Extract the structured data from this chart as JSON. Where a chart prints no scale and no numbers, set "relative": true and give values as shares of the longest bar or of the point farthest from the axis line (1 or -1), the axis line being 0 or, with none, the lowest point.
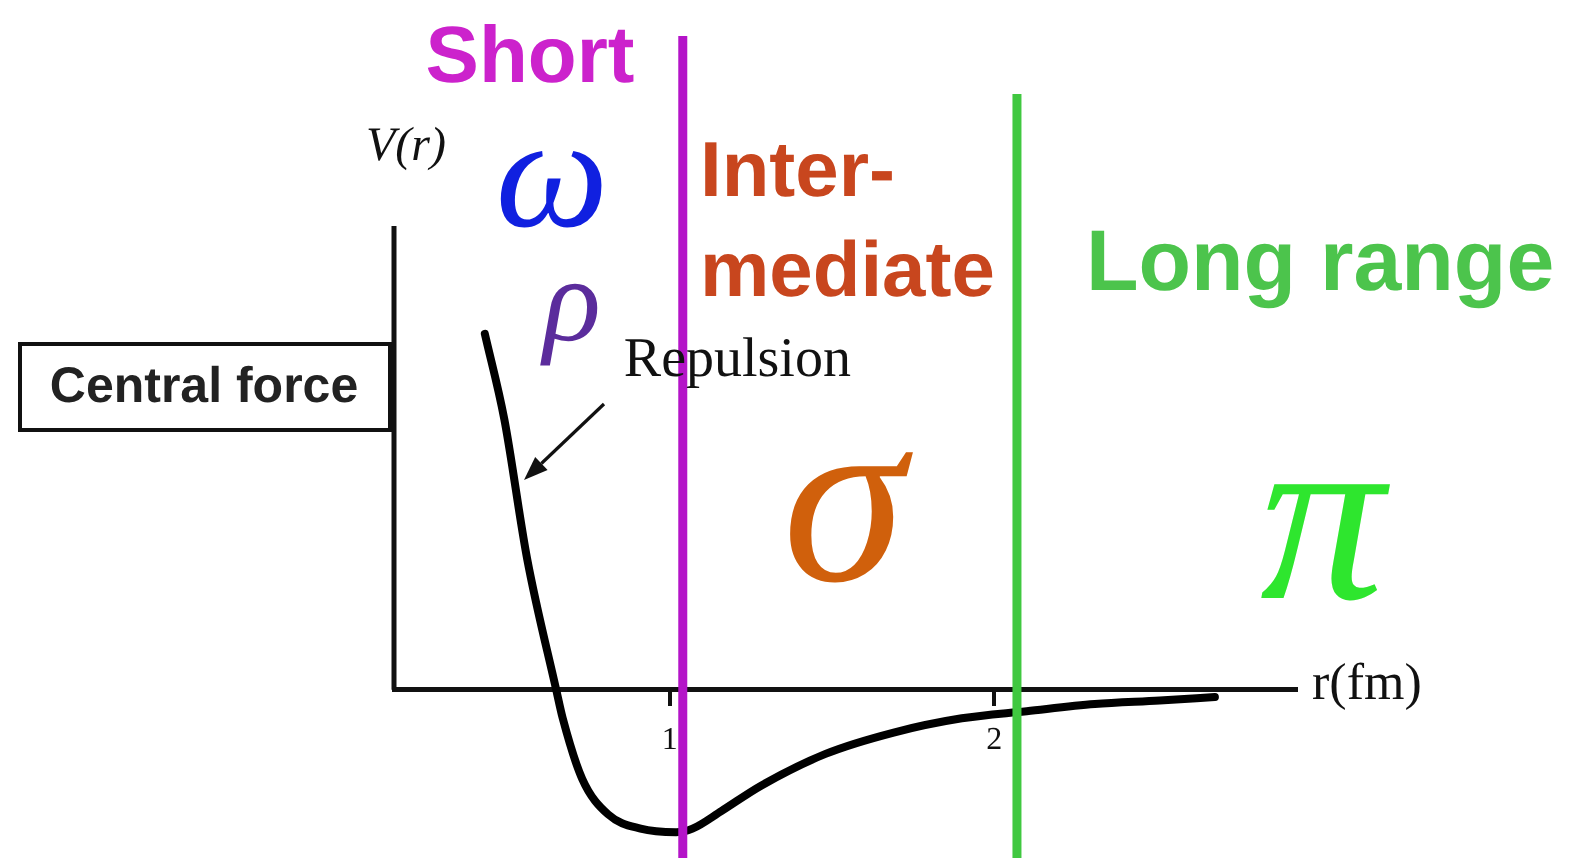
{
  "chart_data": {
    "type": "line",
    "ylabel": "V(r)",
    "xlabel": "r(fm)",
    "x": [
      0.43,
      0.49,
      0.56,
      0.65,
      0.67,
      0.73,
      0.81,
      0.91,
      1.02,
      1.07,
      1.16,
      1.28,
      1.48,
      1.69,
      1.9,
      2.1,
      2.31,
      2.51,
      2.68
    ],
    "values": [
      1,
      0.76,
      0.37,
      0,
      -0.08,
      -0.25,
      -0.35,
      -0.39,
      -0.4,
      -0.39,
      -0.34,
      -0.27,
      -0.18,
      -0.12,
      -0.08,
      -0.06,
      -0.04,
      -0.03,
      -0.02
    ],
    "color": "#000000",
    "relative": true,
    "marker": "none",
    "grid": false,
    "xlim": [
      0.15,
      2.93
    ],
    "xticks": [
      1,
      2
    ],
    "ref_lines": [
      {
        "axis": "x",
        "value": 1.04,
        "color": "#b414c8"
      },
      {
        "axis": "x",
        "value": 2.07,
        "color": "#40c840"
      }
    ],
    "annotations": [
      "Short",
      "Inter-mediate",
      "Long range",
      "ω",
      "ρ",
      "σ",
      "π",
      "Central force",
      {
        "text": "Repulsion",
        "x": 0.55,
        "y": 0.59
      }
    ]
  }
}
